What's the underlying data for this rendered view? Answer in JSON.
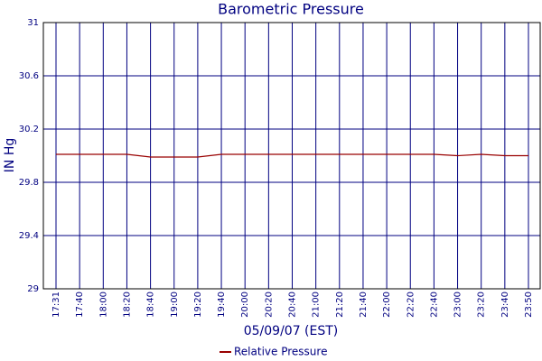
{
  "chart_data": {
    "type": "line",
    "title": "Barometric Pressure",
    "x_label": "05/09/07 (EST)",
    "y_label": "IN Hg",
    "categories": [
      "17:31",
      "17:40",
      "18:00",
      "18:20",
      "18:40",
      "19:00",
      "19:20",
      "19:40",
      "20:00",
      "20:20",
      "20:40",
      "21:00",
      "21:20",
      "21:40",
      "22:00",
      "22:20",
      "22:40",
      "23:00",
      "23:20",
      "23:40",
      "23:50"
    ],
    "series": [
      {
        "name": "Relative Pressure",
        "color": "#990000",
        "values": [
          30.01,
          30.01,
          30.01,
          30.01,
          29.99,
          29.99,
          29.99,
          30.01,
          30.01,
          30.01,
          30.01,
          30.01,
          30.01,
          30.01,
          30.01,
          30.01,
          30.01,
          30.0,
          30.01,
          30.0,
          30.0
        ]
      }
    ],
    "ylim": [
      29,
      31
    ],
    "yticks": [
      29,
      29.4,
      29.8,
      30.2,
      30.6,
      31
    ],
    "grid": true,
    "grid_color": "#000080",
    "legend": "bottom"
  }
}
